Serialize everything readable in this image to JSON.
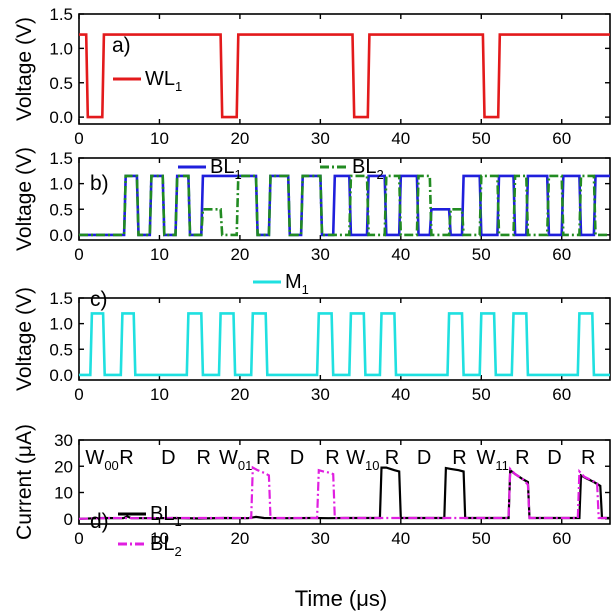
{
  "figure": {
    "xlabel": "Time (μs)"
  },
  "chart_data": [
    {
      "type": "line",
      "panel_label": "a)",
      "ylabel": "Voltage (V)",
      "ylim": [
        -0.1,
        1.5
      ],
      "yticks": [
        "0.0",
        "0.5",
        "1.0",
        "1.5"
      ],
      "xlim": [
        0,
        66
      ],
      "xticks": [
        "0",
        "10",
        "20",
        "30",
        "40",
        "50",
        "60"
      ],
      "legend": [
        {
          "name": "WL",
          "sub": "1",
          "color": "#e31a1c",
          "dash": "solid"
        }
      ],
      "series": [
        {
          "name": "WL1",
          "color": "#e31a1c",
          "dash": "solid",
          "x": [
            0,
            0.9,
            1.1,
            2.9,
            3.1,
            17.6,
            17.8,
            19.6,
            19.8,
            34.0,
            34.2,
            35.9,
            36.1,
            50.2,
            50.4,
            52.1,
            52.3,
            66
          ],
          "y": [
            1.2,
            1.2,
            0,
            0,
            1.2,
            1.2,
            0,
            0,
            1.2,
            1.2,
            0,
            0,
            1.2,
            1.2,
            0,
            0,
            1.2,
            1.2
          ]
        }
      ]
    },
    {
      "type": "line",
      "panel_label": "b)",
      "ylabel": "Voltage (V)",
      "ylim": [
        -0.1,
        1.5
      ],
      "yticks": [
        "0.0",
        "0.5",
        "1.0",
        "1.5"
      ],
      "xlim": [
        0,
        66
      ],
      "xticks": [
        "0",
        "10",
        "20",
        "30",
        "40",
        "50",
        "60"
      ],
      "legend": [
        {
          "name": "BL",
          "sub": "1",
          "color": "#1f1fdc",
          "dash": "solid"
        },
        {
          "name": "BL",
          "sub": "2",
          "color": "#228b22",
          "dash": "dashdot"
        }
      ],
      "series": [
        {
          "name": "BL1",
          "color": "#1f1fdc",
          "dash": "solid",
          "x": [
            0,
            5.6,
            5.8,
            7.2,
            7.4,
            8.8,
            9.0,
            10.4,
            10.6,
            12.0,
            12.2,
            13.6,
            13.8,
            15.2,
            15.4,
            22.0,
            22.2,
            23.6,
            23.8,
            26.0,
            26.2,
            27.6,
            27.8,
            30.0,
            30.2,
            31.6,
            31.8,
            33.6,
            33.8,
            35.8,
            36.0,
            38.0,
            38.2,
            39.8,
            40.0,
            42.0,
            42.2,
            43.6,
            43.8,
            46.0,
            46.2,
            47.6,
            47.8,
            49.8,
            50.0,
            52.0,
            52.2,
            54.0,
            54.2,
            55.6,
            55.8,
            58.2,
            58.4,
            60.0,
            60.2,
            62.2,
            62.4,
            64.0,
            64.2,
            66
          ],
          "y": [
            0,
            0,
            1.15,
            1.15,
            0,
            0,
            1.15,
            1.15,
            0,
            0,
            1.15,
            1.15,
            0,
            0,
            1.15,
            1.15,
            0,
            0,
            1.15,
            1.15,
            0,
            0,
            1.15,
            1.15,
            0,
            0,
            1.15,
            1.15,
            0,
            0,
            1.15,
            1.15,
            0,
            0,
            1.15,
            1.15,
            0,
            0,
            0.5,
            0.5,
            0,
            0,
            1.15,
            1.15,
            0,
            0,
            1.15,
            1.15,
            0,
            0,
            1.15,
            1.15,
            0,
            0,
            1.15,
            1.15,
            0,
            0,
            1.15,
            1.15
          ]
        },
        {
          "name": "BL2",
          "color": "#228b22",
          "dash": "dashdot",
          "x": [
            0,
            5.6,
            5.8,
            7.2,
            7.4,
            8.8,
            9.0,
            10.4,
            10.6,
            12.0,
            12.2,
            13.6,
            13.8,
            15.2,
            15.4,
            17.6,
            17.8,
            19.6,
            19.8,
            22.0,
            22.2,
            23.6,
            23.8,
            26.0,
            26.2,
            27.6,
            27.8,
            30.0,
            30.2,
            31.6,
            31.8,
            33.6,
            33.8,
            35.8,
            36.0,
            38.0,
            38.2,
            39.8,
            40.0,
            42.0,
            42.2,
            43.6,
            43.8,
            46.0,
            46.2,
            47.6,
            47.8,
            49.8,
            50.0,
            52.0,
            52.2,
            54.0,
            54.2,
            55.6,
            55.8,
            58.2,
            58.4,
            60.0,
            60.2,
            62.2,
            62.4,
            64.0,
            64.2,
            66
          ],
          "y": [
            0,
            0,
            1.15,
            1.15,
            0,
            0,
            1.15,
            1.15,
            0,
            0,
            1.15,
            1.15,
            0,
            0,
            0.5,
            0.5,
            0,
            0,
            1.15,
            1.15,
            0,
            0,
            1.15,
            1.15,
            0,
            0,
            1.15,
            1.15,
            0,
            0,
            0,
            0,
            1.15,
            1.15,
            0,
            0,
            1.15,
            1.15,
            0,
            0,
            1.15,
            1.15,
            0,
            0,
            0.5,
            0.5,
            0,
            0,
            1.15,
            1.15,
            0,
            0,
            1.15,
            1.15,
            0,
            0,
            1.15,
            1.15,
            0,
            0,
            1.15,
            1.15,
            0,
            0
          ]
        }
      ]
    },
    {
      "type": "line",
      "panel_label": "c)",
      "ylabel": "Voltage (V)",
      "ylim": [
        -0.1,
        1.5
      ],
      "yticks": [
        "0.0",
        "0.5",
        "1.0",
        "1.5"
      ],
      "xlim": [
        0,
        66
      ],
      "xticks": [
        "0",
        "10",
        "20",
        "30",
        "40",
        "50",
        "60"
      ],
      "legend": [
        {
          "name": "M",
          "sub": "1",
          "color": "#1fe0e0",
          "dash": "solid"
        }
      ],
      "series": [
        {
          "name": "M1",
          "color": "#1fe0e0",
          "dash": "solid",
          "x": [
            0,
            1.4,
            1.6,
            3.0,
            3.2,
            5.2,
            5.4,
            6.8,
            7.0,
            13.4,
            13.6,
            15.2,
            15.4,
            17.4,
            17.6,
            19.2,
            19.4,
            21.4,
            21.6,
            23.2,
            23.4,
            29.6,
            29.8,
            31.4,
            31.6,
            33.6,
            33.8,
            35.4,
            35.6,
            37.4,
            37.6,
            39.2,
            39.4,
            45.8,
            46.0,
            47.6,
            47.8,
            49.8,
            50.0,
            51.6,
            51.8,
            53.8,
            54.0,
            55.6,
            55.8,
            62.0,
            62.2,
            63.8,
            64.0,
            66
          ],
          "y": [
            0,
            0,
            1.2,
            1.2,
            0,
            0,
            1.2,
            1.2,
            0,
            0,
            1.2,
            1.2,
            0,
            0,
            1.2,
            1.2,
            0,
            0,
            1.2,
            1.2,
            0,
            0,
            1.2,
            1.2,
            0,
            0,
            1.2,
            1.2,
            0,
            0,
            1.2,
            1.2,
            0,
            0,
            1.2,
            1.2,
            0,
            0,
            1.2,
            1.2,
            0,
            0,
            1.2,
            1.2,
            0,
            0,
            1.2,
            1.2,
            0,
            0
          ]
        }
      ]
    },
    {
      "type": "line",
      "panel_label": "d)",
      "ylabel": "Current (μA)",
      "ylim": [
        -2,
        30
      ],
      "yticks": [
        "0",
        "10",
        "20",
        "30"
      ],
      "xlim": [
        0,
        66
      ],
      "xticks": [
        "0",
        "10",
        "20",
        "30",
        "40",
        "50",
        "60"
      ],
      "legend": [
        {
          "name": "BL",
          "sub": "1",
          "color": "#000000",
          "dash": "solid"
        },
        {
          "name": "BL",
          "sub": "2",
          "color": "#e01fe0",
          "dash": "dashdot"
        }
      ],
      "annotations": [
        {
          "text": "W",
          "sub": "00",
          "x": 0.8
        },
        {
          "text": "R",
          "sub": "",
          "x": 5.0
        },
        {
          "text": "D",
          "sub": "",
          "x": 10.2
        },
        {
          "text": "R",
          "sub": "",
          "x": 14.6
        },
        {
          "text": "W",
          "sub": "01",
          "x": 17.4
        },
        {
          "text": "R",
          "sub": "",
          "x": 22.0
        },
        {
          "text": "D",
          "sub": "",
          "x": 26.2
        },
        {
          "text": "R",
          "sub": "",
          "x": 30.6
        },
        {
          "text": "W",
          "sub": "10",
          "x": 33.2
        },
        {
          "text": "R",
          "sub": "",
          "x": 38.0
        },
        {
          "text": "D",
          "sub": "",
          "x": 42.0
        },
        {
          "text": "R",
          "sub": "",
          "x": 46.4
        },
        {
          "text": "W",
          "sub": "11",
          "x": 49.4
        },
        {
          "text": "R",
          "sub": "",
          "x": 54.2
        },
        {
          "text": "D",
          "sub": "",
          "x": 58.2
        },
        {
          "text": "R",
          "sub": "",
          "x": 62.4
        }
      ],
      "series": [
        {
          "name": "BL1",
          "color": "#000000",
          "dash": "solid",
          "x": [
            0,
            3,
            5.5,
            6,
            6.5,
            9,
            12,
            15,
            18,
            21,
            22,
            23,
            26,
            29,
            31,
            33,
            37.4,
            37.6,
            38.2,
            39.2,
            39.8,
            40.0,
            43,
            45.4,
            45.6,
            46.2,
            47.2,
            47.8,
            48.0,
            51,
            53.4,
            53.6,
            54.2,
            55.2,
            55.8,
            56.0,
            59,
            62.2,
            62.4,
            63.0,
            64.0,
            64.8,
            65.0,
            66
          ],
          "y": [
            0,
            0.3,
            0.2,
            0.9,
            0.2,
            0.2,
            0.3,
            0.1,
            0.3,
            0.2,
            0.7,
            0.3,
            0.2,
            0.3,
            0.2,
            0.3,
            0.3,
            19.5,
            19.5,
            18.5,
            18.0,
            0.3,
            0.3,
            0.3,
            19.3,
            19.0,
            18.5,
            18.0,
            0.3,
            0.3,
            0.3,
            18.5,
            17.0,
            15.0,
            14.0,
            0.3,
            0.3,
            0.3,
            16.5,
            15.5,
            14.0,
            12.5,
            0.3,
            0.3
          ]
        },
        {
          "name": "BL2",
          "color": "#e01fe0",
          "dash": "dashdot",
          "x": [
            0,
            4,
            8,
            12,
            16,
            20,
            21.4,
            21.6,
            22.2,
            23.0,
            23.6,
            23.8,
            27,
            29.6,
            29.8,
            30.4,
            31.2,
            31.6,
            31.8,
            35,
            38,
            42,
            46,
            50,
            53.4,
            53.6,
            54.2,
            55.2,
            55.8,
            56.0,
            59,
            62.0,
            62.2,
            62.8,
            63.8,
            64.4,
            64.6,
            66
          ],
          "y": [
            0,
            0.3,
            0.2,
            0.3,
            0.3,
            0.3,
            0.3,
            19.5,
            18.5,
            17.5,
            16.5,
            0.3,
            0.3,
            0.3,
            18.5,
            18.0,
            17.5,
            17.0,
            0.3,
            0.3,
            0.3,
            0.3,
            0.3,
            0.3,
            0.3,
            19.0,
            17.0,
            15.0,
            13.0,
            0.3,
            0.3,
            0.3,
            18.0,
            16.0,
            14.5,
            13.5,
            0.3,
            0.3
          ]
        }
      ]
    }
  ]
}
